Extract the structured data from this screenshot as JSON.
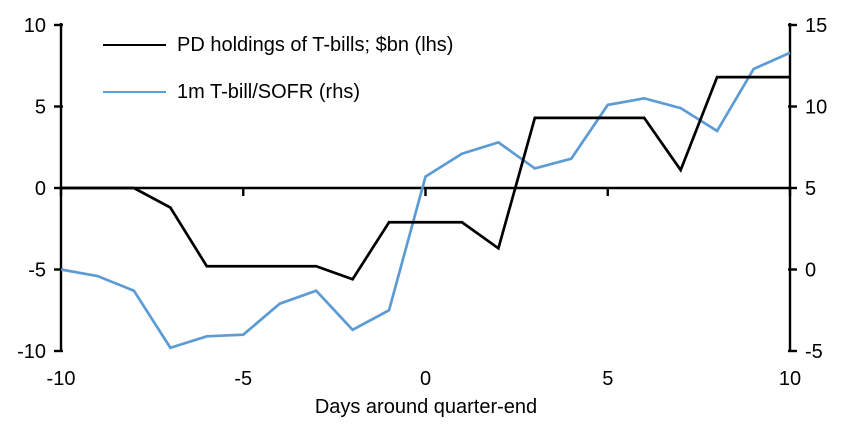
{
  "chart_data": {
    "type": "line",
    "title": "",
    "xlabel": "Days around quarter-end",
    "grid": false,
    "legend_position": "top-left",
    "x": [
      -10,
      -9,
      -8,
      -7,
      -6,
      -5,
      -4,
      -3,
      -2,
      -1,
      0,
      1,
      2,
      3,
      4,
      5,
      6,
      7,
      8,
      9,
      10
    ],
    "x_ticks": [
      -10,
      -5,
      0,
      5,
      10
    ],
    "left_axis": {
      "min": -10,
      "max": 10,
      "ticks": [
        -10,
        -5,
        0,
        5,
        10
      ]
    },
    "right_axis": {
      "min": -5,
      "max": 15,
      "ticks": [
        -5,
        0,
        5,
        10,
        15
      ]
    },
    "series": [
      {
        "name": "PD holdings of T-bills; $bn (lhs)",
        "axis": "left",
        "color": "#000000",
        "values": [
          0,
          0,
          0,
          -1.2,
          -4.8,
          -4.8,
          -4.8,
          -4.8,
          -5.6,
          -2.1,
          -2.1,
          -2.1,
          -3.7,
          4.3,
          4.3,
          4.3,
          4.3,
          1.1,
          6.8,
          6.8,
          6.8
        ]
      },
      {
        "name": "1m T-bill/SOFR (rhs)",
        "axis": "right",
        "color": "#5D9BD5",
        "values": [
          0.0,
          -0.4,
          -1.3,
          -4.8,
          -4.1,
          -4.0,
          -2.1,
          -1.3,
          -3.7,
          -2.5,
          5.7,
          7.1,
          7.8,
          6.2,
          6.8,
          10.1,
          10.5,
          9.9,
          8.5,
          12.3,
          13.3
        ]
      }
    ]
  }
}
